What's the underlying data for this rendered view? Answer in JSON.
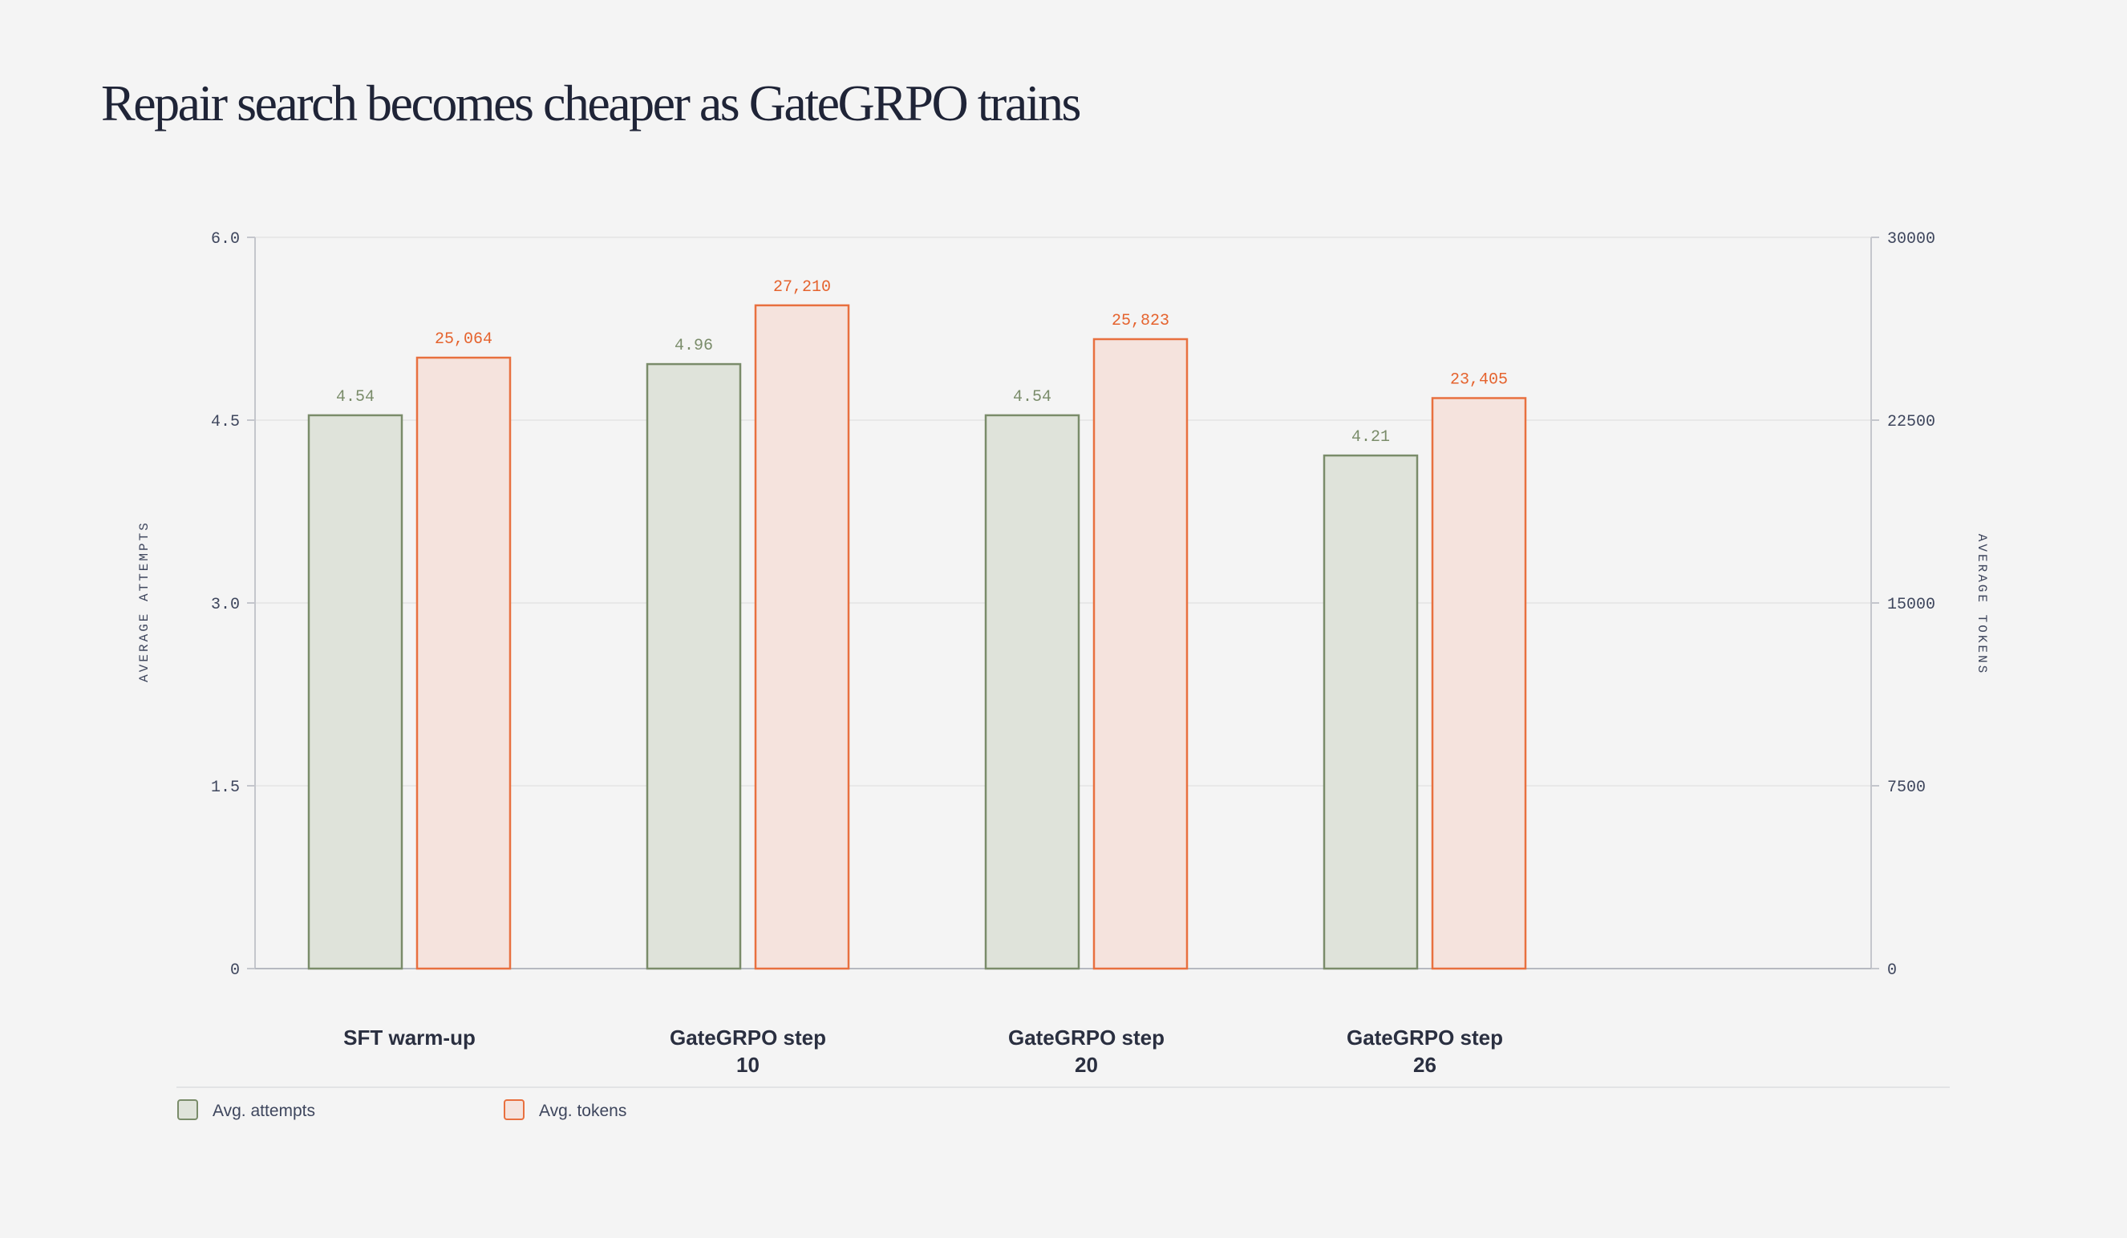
{
  "chart_data": {
    "type": "bar",
    "title": "Repair search becomes cheaper as GateGRPO trains",
    "categories": [
      [
        "SFT warm-up"
      ],
      [
        "GateGRPO step",
        "10"
      ],
      [
        "GateGRPO step",
        "20"
      ],
      [
        "GateGRPO step",
        "26"
      ]
    ],
    "series": [
      {
        "name": "Avg. attempts",
        "axis": "left",
        "values": [
          4.54,
          4.96,
          4.54,
          4.21
        ],
        "labels": [
          "4.54",
          "4.96",
          "4.54",
          "4.21"
        ],
        "stroke": "#7a8c6a",
        "fill": "#dfe3da",
        "label_color": "#7a8c6a"
      },
      {
        "name": "Avg. tokens",
        "axis": "right",
        "values": [
          25064,
          27210,
          25823,
          23405
        ],
        "labels": [
          "25,064",
          "27,210",
          "25,823",
          "23,405"
        ],
        "stroke": "#e8703f",
        "fill": "#f5e3dd",
        "label_color": "#e5632e"
      }
    ],
    "y_left": {
      "label": "AVERAGE ATTEMPTS",
      "ylim": [
        0,
        6
      ],
      "ticks": [
        0,
        1.5,
        3,
        4.5,
        6
      ],
      "tick_labels": [
        "0",
        "1.5",
        "3.0",
        "4.5",
        "6.0"
      ]
    },
    "y_right": {
      "label": "AVERAGE TOKENS",
      "ylim": [
        0,
        30000
      ],
      "ticks": [
        0,
        7500,
        15000,
        22500,
        30000
      ],
      "tick_labels": [
        "0",
        "7500",
        "15000",
        "22500",
        "30000"
      ]
    },
    "grid": true,
    "legend_position": "bottom-left"
  }
}
